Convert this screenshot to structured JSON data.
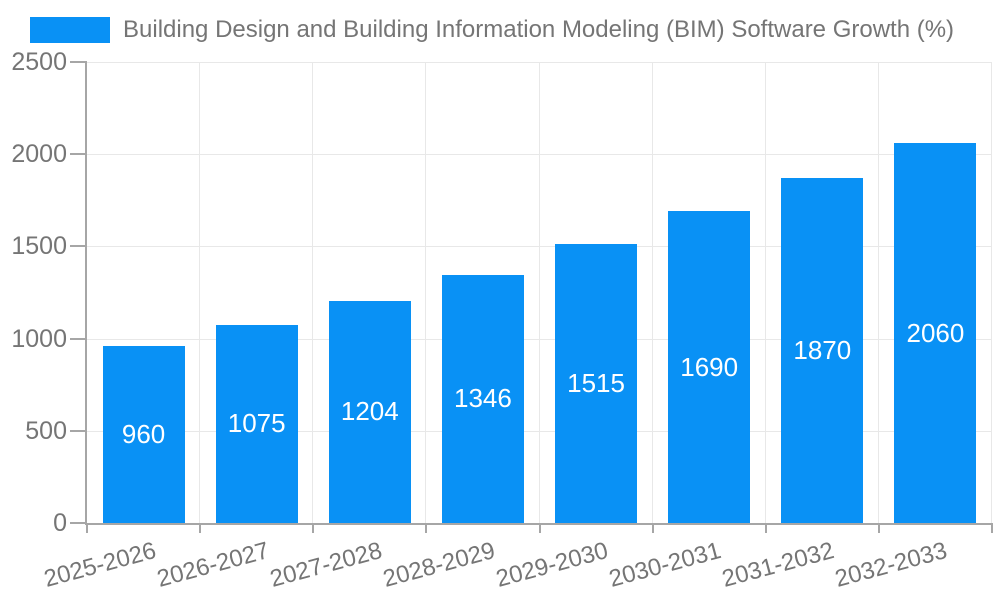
{
  "chart_data": {
    "type": "bar",
    "title": "Building Design and Building Information Modeling (BIM) Software Growth (%)",
    "legend_position": "top-left",
    "categories": [
      "2025-2026",
      "2026-2027",
      "2027-2028",
      "2028-2029",
      "2029-2030",
      "2030-2031",
      "2031-2032",
      "2032-2033"
    ],
    "series": [
      {
        "name": "Building Design and Building Information Modeling (BIM) Software Growth (%)",
        "values": [
          960,
          1075,
          1204,
          1346,
          1515,
          1690,
          1870,
          2060
        ]
      }
    ],
    "bar_value_labels": [
      "960",
      "1075",
      "1204",
      "1346",
      "1515",
      "1690",
      "1870",
      "2060"
    ],
    "xlabel": "",
    "ylabel": "",
    "ylim": [
      0,
      2500
    ],
    "yticks": [
      0,
      500,
      1000,
      1500,
      2000,
      2500
    ],
    "grid": true,
    "x_tick_label_rotation_deg": -15
  },
  "colors": {
    "bar": "#0991f5",
    "axis_text": "#757575",
    "grid_line": "#e8e8e8",
    "axis_line": "#a6a6a6",
    "bar_label": "#ffffff",
    "background": "#ffffff"
  }
}
